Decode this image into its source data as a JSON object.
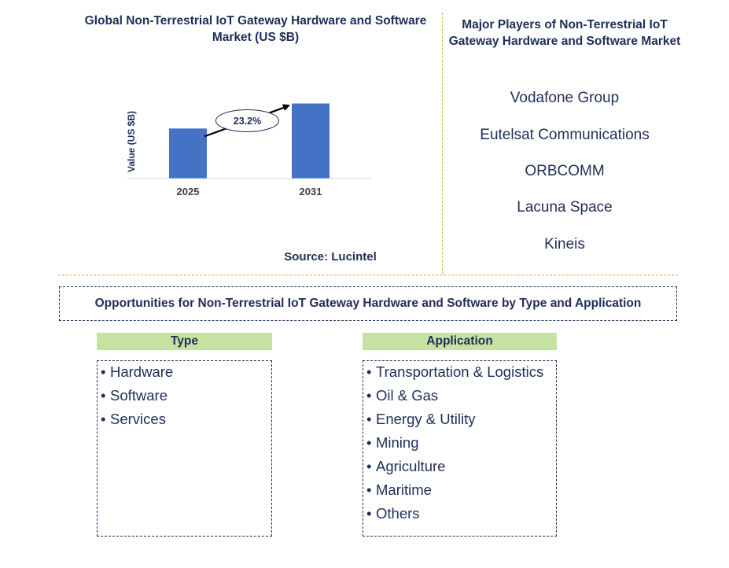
{
  "chart_title": "Global Non-Terrestrial IoT Gateway Hardware and Software Market (US $B)",
  "source": "Source: Lucintel",
  "chart_data": {
    "type": "bar",
    "title": "Global Non-Terrestrial IoT Gateway Hardware and Software Market (US $B)",
    "ylabel": "Value (US $B)",
    "xlabel": "",
    "categories": [
      "2025",
      "2031"
    ],
    "values": [
      1.0,
      1.5
    ],
    "ylim": [
      0,
      1.65
    ],
    "bar_color": "#4472c4",
    "annotation": {
      "label": "23.2%",
      "from": "2025",
      "to": "2031"
    },
    "grid": false,
    "legend": "none"
  },
  "players": {
    "title": "Major Players of Non-Terrestrial IoT Gateway Hardware and Software Market",
    "items": [
      "Vodafone Group",
      "Eutelsat Communications",
      "ORBCOMM",
      "Lacuna Space",
      "Kineis"
    ]
  },
  "opportunities": {
    "title": "Opportunities for Non-Terrestrial IoT Gateway Hardware and Software by Type and Application",
    "type": {
      "header": "Type",
      "items": [
        "Hardware",
        "Software",
        "Services"
      ]
    },
    "application": {
      "header": "Application",
      "items": [
        "Transportation & Logistics",
        "Oil & Gas",
        "Energy & Utility",
        "Mining",
        "Agriculture",
        "Maritime",
        "Others"
      ]
    }
  },
  "colors": {
    "text": "#1f2d5a",
    "bar": "#4472c4",
    "header_fill": "#c6e2a3",
    "divider": "#d8b33c"
  }
}
